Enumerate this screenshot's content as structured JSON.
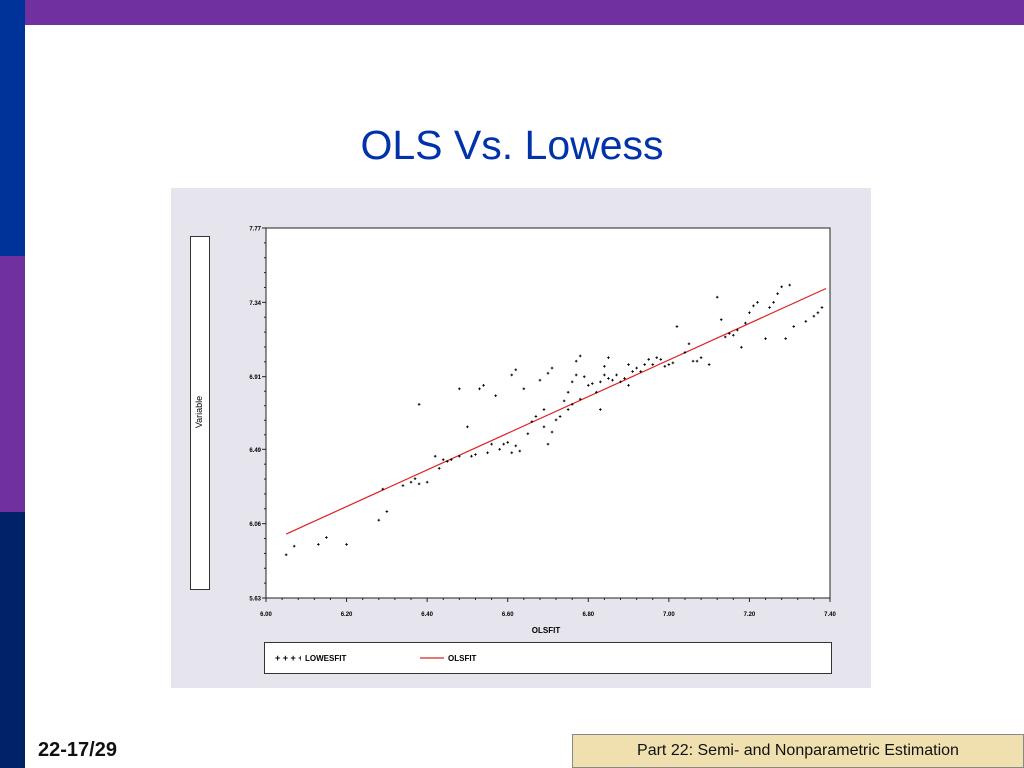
{
  "slide": {
    "title": "OLS Vs. Lowess",
    "page_number": "22-17/29",
    "footer": "Part 22: Semi- and Nonparametric Estimation"
  },
  "colors": {
    "top_bar": "#7030a0",
    "side_bar_top": "#003399",
    "side_bar_middle": "#7030a0",
    "side_bar_bottom": "#002266",
    "title": "#0033aa",
    "ols_line": "#e02020",
    "lowess_points": "#000000",
    "footer_box": "#f0e0b0"
  },
  "chart_data": {
    "type": "scatter",
    "title": "",
    "xlabel": "OLSFIT",
    "ylabel": "Variable",
    "xlim": [
      6.0,
      7.4
    ],
    "ylim": [
      5.63,
      7.77
    ],
    "x_ticks": [
      "6.00",
      "6.20",
      "6.40",
      "6.60",
      "6.80",
      "7.00",
      "7.20",
      "7.40"
    ],
    "y_ticks": [
      "5.63",
      "6.06",
      "6.49",
      "6.91",
      "7.34",
      "7.77"
    ],
    "legend_position": "bottom",
    "series": [
      {
        "name": "LOWESFIT",
        "style": "points",
        "x": [
          6.05,
          6.07,
          6.13,
          6.15,
          6.2,
          6.28,
          6.29,
          6.3,
          6.34,
          6.36,
          6.37,
          6.38,
          6.38,
          6.4,
          6.42,
          6.43,
          6.44,
          6.45,
          6.46,
          6.48,
          6.48,
          6.5,
          6.51,
          6.52,
          6.53,
          6.54,
          6.55,
          6.56,
          6.57,
          6.58,
          6.59,
          6.6,
          6.61,
          6.61,
          6.62,
          6.62,
          6.63,
          6.64,
          6.65,
          6.66,
          6.67,
          6.68,
          6.69,
          6.69,
          6.7,
          6.7,
          6.71,
          6.71,
          6.72,
          6.73,
          6.74,
          6.75,
          6.75,
          6.76,
          6.76,
          6.77,
          6.77,
          6.78,
          6.78,
          6.79,
          6.8,
          6.81,
          6.82,
          6.83,
          6.83,
          6.84,
          6.84,
          6.85,
          6.85,
          6.86,
          6.87,
          6.88,
          6.89,
          6.9,
          6.9,
          6.91,
          6.92,
          6.93,
          6.94,
          6.95,
          6.96,
          6.97,
          6.98,
          6.99,
          7.0,
          7.01,
          7.02,
          7.04,
          7.05,
          7.06,
          7.07,
          7.08,
          7.1,
          7.12,
          7.13,
          7.14,
          7.15,
          7.16,
          7.17,
          7.18,
          7.19,
          7.2,
          7.21,
          7.22,
          7.24,
          7.25,
          7.26,
          7.27,
          7.28,
          7.29,
          7.3,
          7.31,
          7.34,
          7.36,
          7.37,
          7.38
        ],
        "y": [
          5.88,
          5.93,
          5.94,
          5.98,
          5.94,
          6.08,
          6.26,
          6.13,
          6.28,
          6.3,
          6.32,
          6.29,
          6.75,
          6.3,
          6.45,
          6.38,
          6.43,
          6.42,
          6.43,
          6.84,
          6.45,
          6.62,
          6.45,
          6.46,
          6.84,
          6.86,
          6.47,
          6.52,
          6.8,
          6.49,
          6.52,
          6.53,
          6.92,
          6.47,
          6.51,
          6.95,
          6.48,
          6.84,
          6.58,
          6.65,
          6.68,
          6.89,
          6.62,
          6.72,
          6.52,
          6.93,
          6.96,
          6.59,
          6.66,
          6.68,
          6.77,
          6.72,
          6.82,
          6.88,
          6.75,
          6.92,
          7.0,
          6.78,
          7.03,
          6.91,
          6.86,
          6.87,
          6.82,
          6.88,
          6.72,
          6.92,
          6.97,
          6.9,
          7.02,
          6.89,
          6.92,
          6.88,
          6.9,
          6.86,
          6.98,
          6.94,
          6.96,
          6.94,
          6.98,
          7.01,
          6.98,
          7.02,
          7.01,
          6.97,
          6.98,
          6.99,
          7.2,
          7.05,
          7.1,
          7.0,
          7.0,
          7.02,
          6.98,
          7.37,
          7.24,
          7.14,
          7.16,
          7.15,
          7.18,
          7.08,
          7.22,
          7.28,
          7.32,
          7.34,
          7.13,
          7.31,
          7.34,
          7.39,
          7.43,
          7.13,
          7.44,
          7.2,
          7.23,
          7.26,
          7.28,
          7.31
        ]
      },
      {
        "name": "OLSFIT",
        "style": "line",
        "x": [
          6.05,
          7.39
        ],
        "y": [
          6.0,
          7.42
        ]
      }
    ]
  }
}
